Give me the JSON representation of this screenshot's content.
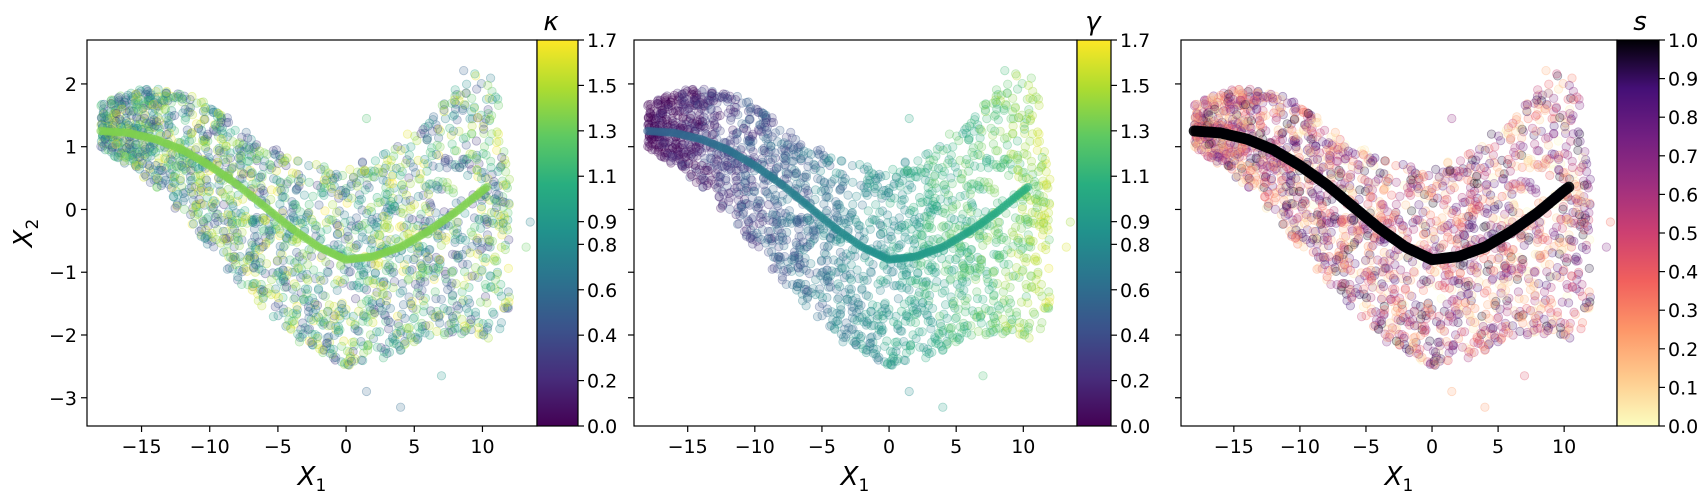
{
  "chart_data": [
    {
      "type": "scatter",
      "panel": "left",
      "xlabel": "X",
      "xlabel_sub": "1",
      "ylabel": "X",
      "ylabel_sub": "2",
      "xlim": [
        -19,
        14
      ],
      "ylim": [
        -3.45,
        2.7
      ],
      "xticks": [
        -15,
        -10,
        -5,
        0,
        5,
        10
      ],
      "xtick_labels": [
        "−15",
        "−10",
        "−5",
        "0",
        "5",
        "10"
      ],
      "yticks": [
        -3,
        -2,
        -1,
        0,
        1,
        2
      ],
      "ytick_labels": [
        "−3",
        "−2",
        "−1",
        "0",
        "1",
        "2"
      ],
      "show_ytick_labels": true,
      "colorbar": {
        "title": "κ",
        "colormap": "viridis",
        "range": [
          0.0,
          1.7
        ],
        "ticks": [
          0.0,
          0.2,
          0.4,
          0.6,
          0.8,
          0.9,
          1.1,
          1.3,
          1.5,
          1.7
        ],
        "tick_labels": [
          "0.0",
          "0.2",
          "0.4",
          "0.6",
          "0.8",
          "0.9",
          "1.1",
          "1.3",
          "1.5",
          "1.7"
        ]
      },
      "color_mode": "random_mid_high",
      "curve_color_value": 0.8
    },
    {
      "type": "scatter",
      "panel": "middle",
      "xlabel": "X",
      "xlabel_sub": "1",
      "xlim": [
        -19,
        14
      ],
      "ylim": [
        -3.45,
        2.7
      ],
      "xticks": [
        -15,
        -10,
        -5,
        0,
        5,
        10
      ],
      "xtick_labels": [
        "−15",
        "−10",
        "−5",
        "0",
        "5",
        "10"
      ],
      "yticks": [
        -3,
        -2,
        -1,
        0,
        1,
        2
      ],
      "show_ytick_labels": false,
      "colorbar": {
        "title": "γ",
        "colormap": "viridis",
        "range": [
          0.0,
          1.7
        ],
        "ticks": [
          0.0,
          0.2,
          0.4,
          0.6,
          0.8,
          0.9,
          1.1,
          1.3,
          1.5,
          1.7
        ],
        "tick_labels": [
          "0.0",
          "0.2",
          "0.4",
          "0.6",
          "0.8",
          "0.9",
          "1.1",
          "1.3",
          "1.5",
          "1.7"
        ]
      },
      "color_mode": "gradient_x",
      "curve_color_value": "gradient"
    },
    {
      "type": "scatter",
      "panel": "right",
      "xlabel": "X",
      "xlabel_sub": "1",
      "xlim": [
        -19,
        14
      ],
      "ylim": [
        -3.45,
        2.7
      ],
      "xticks": [
        -15,
        -10,
        -5,
        0,
        5,
        10
      ],
      "xtick_labels": [
        "−15",
        "−10",
        "−5",
        "0",
        "5",
        "10"
      ],
      "yticks": [
        -3,
        -2,
        -1,
        0,
        1,
        2
      ],
      "show_ytick_labels": false,
      "colorbar": {
        "title": "s",
        "colormap": "magma_r",
        "range": [
          0.0,
          1.0
        ],
        "ticks": [
          0.0,
          0.1,
          0.2,
          0.3,
          0.4,
          0.5,
          0.6,
          0.7,
          0.8,
          0.9,
          1.0
        ],
        "tick_labels": [
          "0.0",
          "0.1",
          "0.2",
          "0.3",
          "0.4",
          "0.5",
          "0.6",
          "0.7",
          "0.8",
          "0.9",
          "1.0"
        ]
      },
      "color_mode": "random_full",
      "curve_color_value": 1.0
    }
  ],
  "principal_curve": {
    "x": [
      -18,
      -16,
      -14,
      -12,
      -10,
      -8,
      -6,
      -4,
      -2,
      0,
      2,
      4,
      6,
      8,
      10,
      10.5
    ],
    "y": [
      1.25,
      1.22,
      1.12,
      0.95,
      0.7,
      0.4,
      0.05,
      -0.3,
      -0.6,
      -0.8,
      -0.75,
      -0.6,
      -0.35,
      -0.05,
      0.3,
      0.38
    ]
  },
  "cloud": {
    "upper_x": [
      -18,
      -15,
      -12,
      -9,
      -6,
      -3,
      0,
      3,
      6,
      9,
      11,
      12
    ],
    "upper_y": [
      1.7,
      1.95,
      1.9,
      1.55,
      1.05,
      0.75,
      0.65,
      0.95,
      1.35,
      2.35,
      2.1,
      0.6
    ],
    "lower_x": [
      -18,
      -15,
      -12,
      -9,
      -6,
      -3,
      0,
      3,
      6,
      9,
      11,
      12
    ],
    "lower_y": [
      1.0,
      0.55,
      -0.1,
      -0.9,
      -1.6,
      -2.2,
      -2.5,
      -2.35,
      -2.05,
      -2.0,
      -2.1,
      -1.8
    ]
  },
  "colors": {
    "axis": "#000000",
    "background": "#ffffff"
  }
}
